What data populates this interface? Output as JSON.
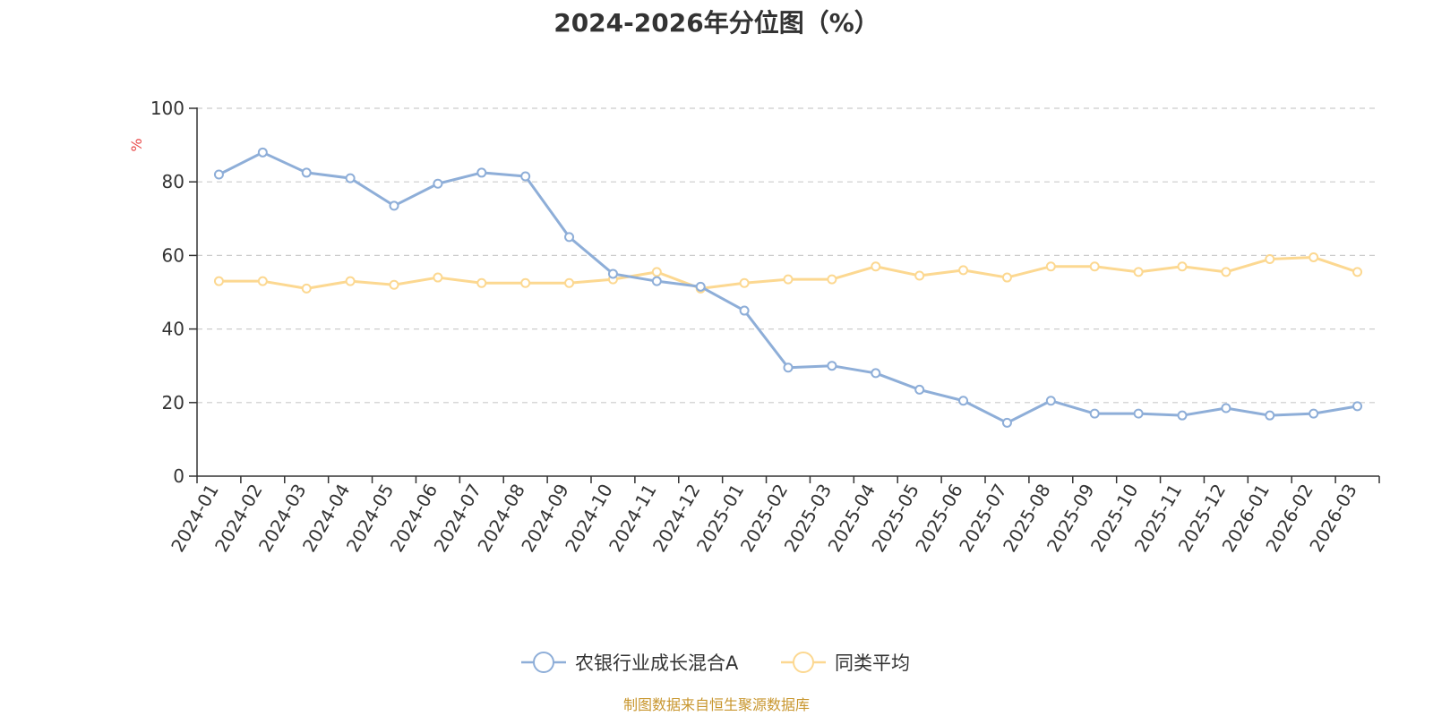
{
  "chart_data": {
    "type": "line",
    "title": "2024-2026年分位图（%）",
    "ylabel": "%",
    "xlabel": "",
    "ylim": [
      0,
      100
    ],
    "yticks": [
      0,
      20,
      40,
      60,
      80,
      100
    ],
    "grid": true,
    "legend_position": "bottom",
    "categories": [
      "2024-01",
      "2024-02",
      "2024-03",
      "2024-04",
      "2024-05",
      "2024-06",
      "2024-07",
      "2024-08",
      "2024-09",
      "2024-10",
      "2024-11",
      "2024-12",
      "2025-01",
      "2025-02",
      "2025-03",
      "2025-04",
      "2025-05",
      "2025-06",
      "2025-07",
      "2025-08",
      "2025-09",
      "2025-10",
      "2025-11",
      "2025-12",
      "2026-01",
      "2026-02",
      "2026-03"
    ],
    "series": [
      {
        "name": "农银行业成长混合A",
        "color": "#8eaed8",
        "values": [
          82,
          88,
          82.5,
          81,
          73.5,
          79.5,
          82.5,
          81.5,
          65,
          55,
          53,
          51.5,
          45,
          29.5,
          30,
          28,
          23.5,
          20.5,
          14.5,
          20.5,
          17,
          17,
          16.5,
          18.5,
          16.5,
          17,
          19
        ]
      },
      {
        "name": "同类平均",
        "color": "#fcd891",
        "values": [
          53,
          53,
          51,
          53,
          52,
          54,
          52.5,
          52.5,
          52.5,
          53.5,
          55.5,
          51,
          52.5,
          53.5,
          53.5,
          57,
          54.5,
          56,
          54,
          57,
          57,
          55.5,
          57,
          55.5,
          59,
          59.5,
          55.5
        ]
      }
    ]
  },
  "source_note": "制图数据来自恒生聚源数据库",
  "colors": {
    "axis": "#333333",
    "grid": "#cccccc",
    "ylabel": "#e84a4a",
    "source": "#c8962e"
  }
}
